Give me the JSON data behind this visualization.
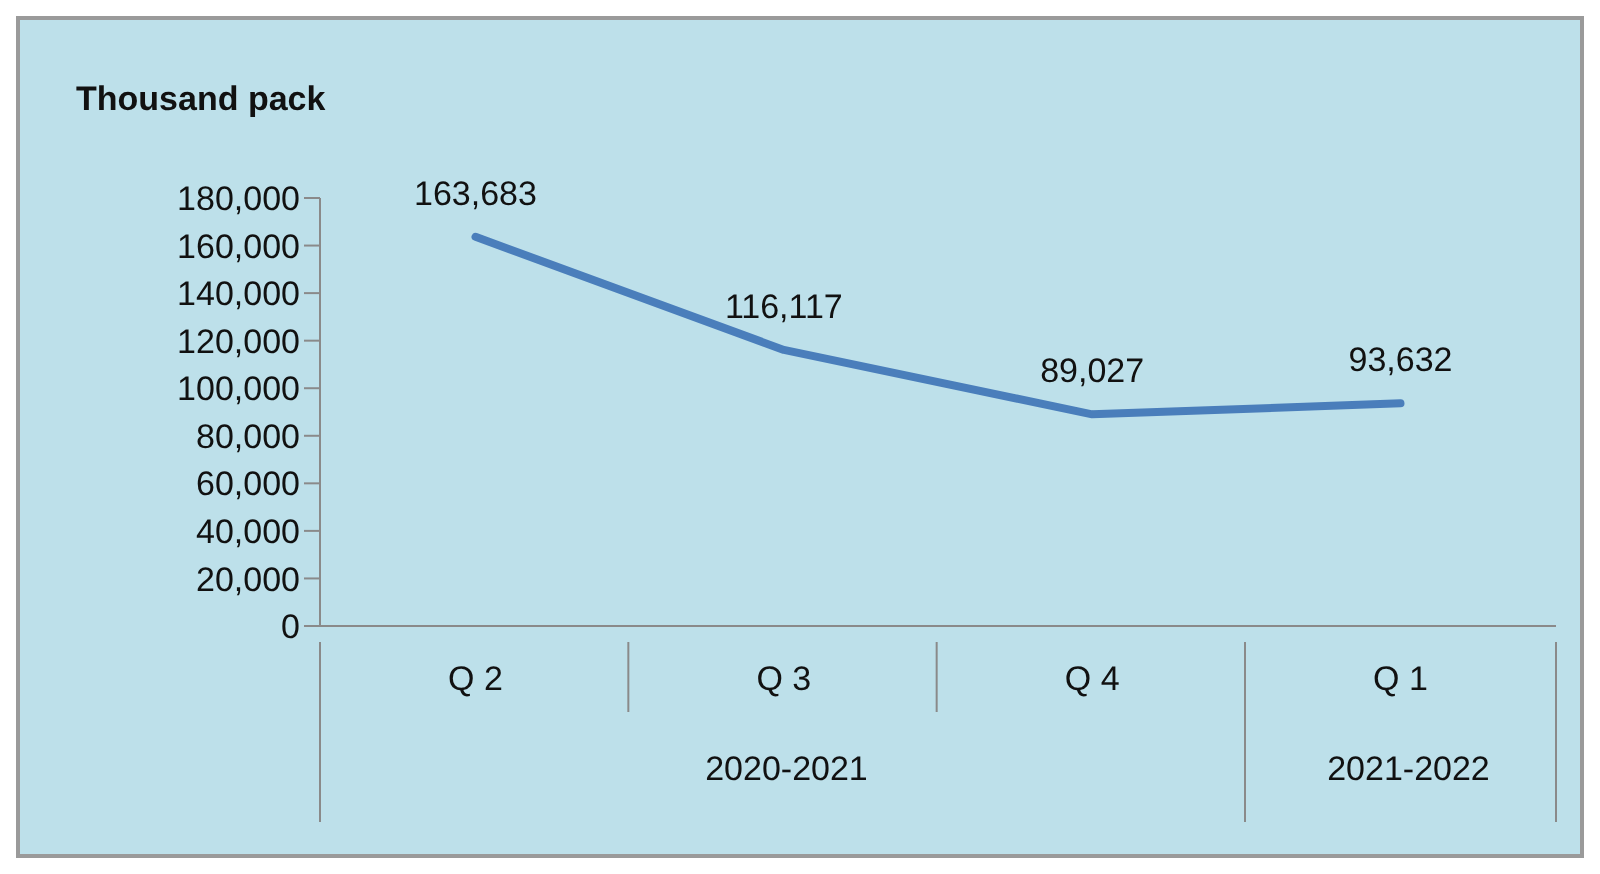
{
  "chart_data": {
    "type": "line",
    "ylabel": "Thousand pack",
    "categories": [
      "Q 2",
      "Q 3",
      "Q 4",
      "Q 1"
    ],
    "annotations": [
      "2020-2021",
      "2021-2022"
    ],
    "series": [
      {
        "color": "#4a7ebb",
        "values": [
          163683,
          116117,
          89027,
          93632
        ],
        "value_labels": [
          "163,683",
          "116,117",
          "89,027",
          "93,632"
        ]
      }
    ],
    "ylim": [
      0,
      180000
    ],
    "yticks": [
      0,
      {
        "value": 20000,
        "label": "20,000"
      },
      {
        "value": 40000,
        "label": "40,000"
      },
      {
        "value": 60000,
        "label": "60,000"
      },
      {
        "value": 80000,
        "label": "80,000"
      },
      {
        "value": 100000,
        "label": "100,000"
      },
      {
        "value": 120000,
        "label": "120,000"
      },
      {
        "value": 140000,
        "label": "140,000"
      },
      {
        "value": 160000,
        "label": "160,000"
      },
      {
        "value": 180000,
        "label": "180,000"
      }
    ],
    "grid": false,
    "legend": false,
    "marker": "none",
    "line_style": "solid"
  }
}
